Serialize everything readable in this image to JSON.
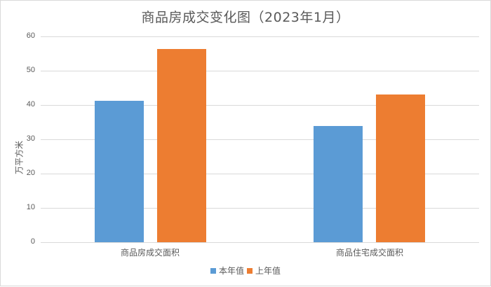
{
  "chart_data": {
    "type": "bar",
    "title": "商品房成交变化图（2023年1月）",
    "xlabel": "",
    "ylabel": "万平方米",
    "ylim": [
      0,
      60
    ],
    "yticks": [
      0,
      10,
      20,
      30,
      40,
      50,
      60
    ],
    "grid": true,
    "legend_position": "bottom",
    "categories": [
      "商品房成交面积",
      "商品住宅成交面积"
    ],
    "series": [
      {
        "name": "本年值",
        "color": "#5b9bd5",
        "values": [
          41.3,
          33.9
        ]
      },
      {
        "name": "上年值",
        "color": "#ed7d31",
        "values": [
          56.3,
          43.0
        ]
      }
    ]
  }
}
